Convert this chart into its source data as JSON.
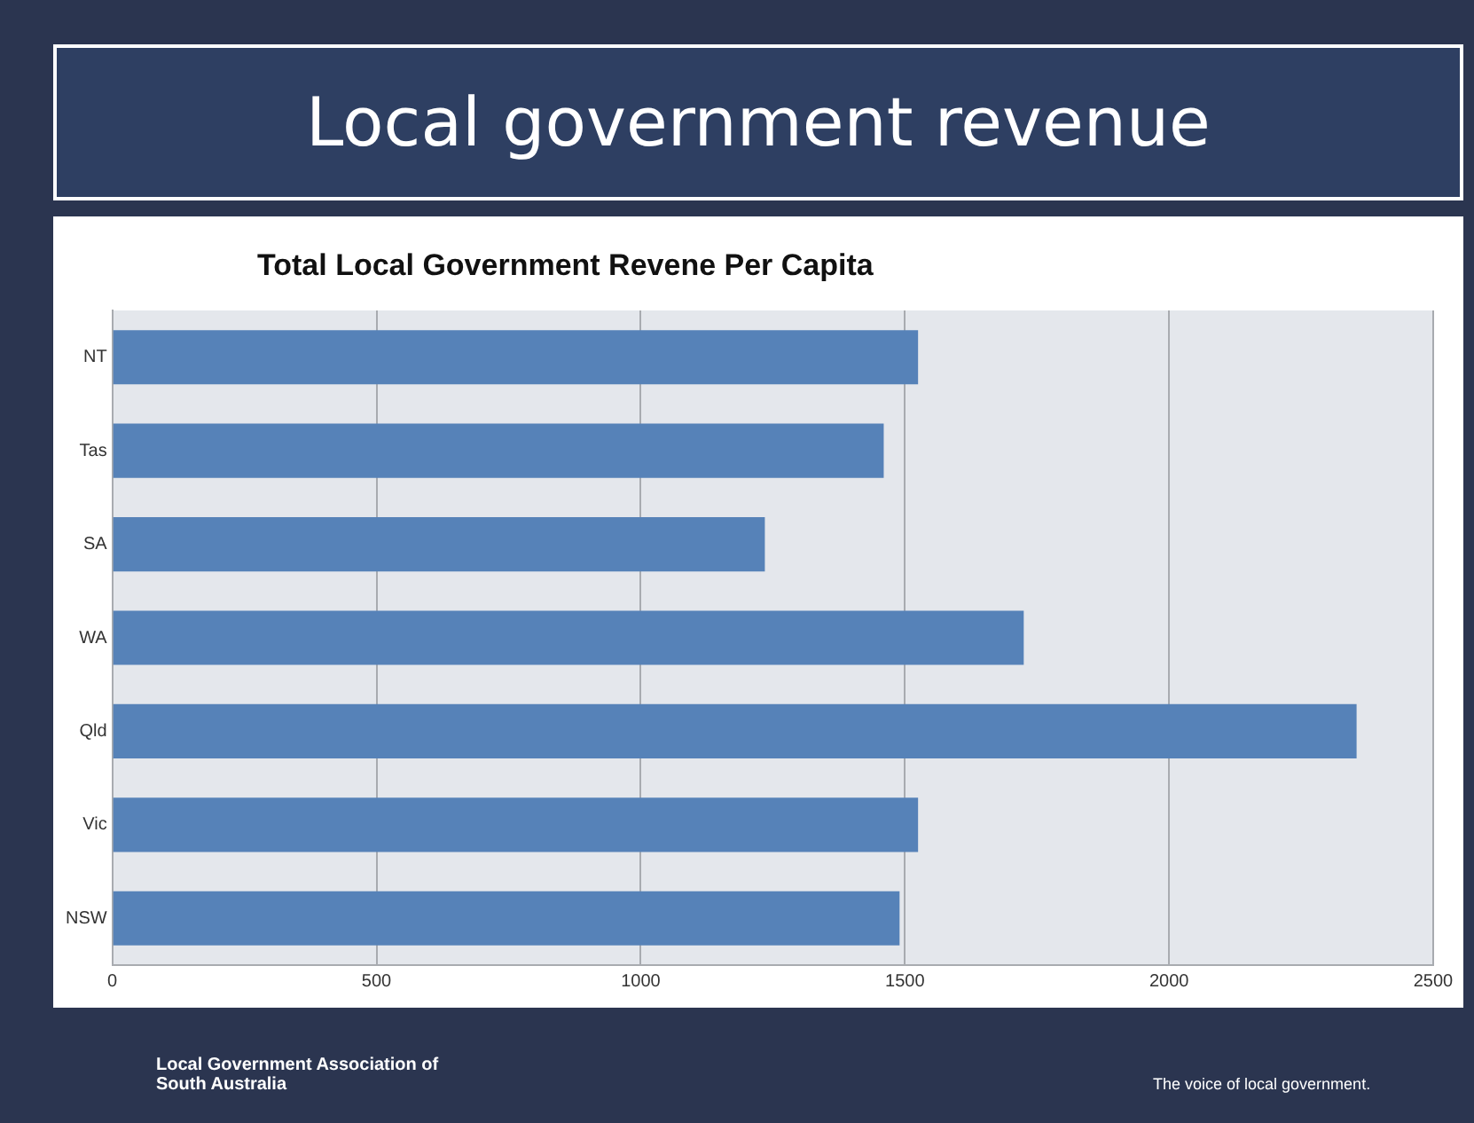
{
  "chart_data": {
    "type": "bar",
    "orientation": "horizontal",
    "title": "Local government revenue",
    "subtitle": "Total Local Government Revene Per Capita",
    "categories": [
      "NT",
      "Tas",
      "SA",
      "WA",
      "Qld",
      "Vic",
      "NSW"
    ],
    "values": [
      1525,
      1460,
      1235,
      1725,
      2355,
      1525,
      1490
    ],
    "color": "#5682b8",
    "xlim": [
      0,
      2500
    ],
    "xticks": [
      0,
      500,
      1000,
      1500,
      2000,
      2500
    ],
    "grid": "x",
    "annotations": [
      "Local Government Association of South Australia",
      "The voice of local government."
    ]
  }
}
